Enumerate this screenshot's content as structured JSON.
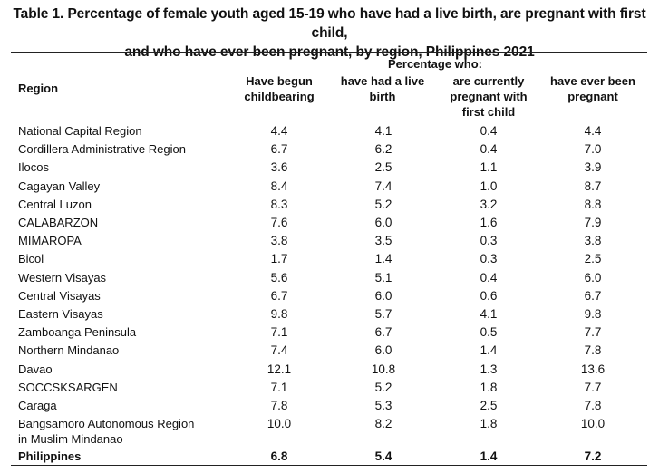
{
  "title": {
    "line1": "Table 1. Percentage of female youth aged 15-19 who have had a live birth, are pregnant with first child,",
    "line2": "and who have ever been pregnant, by region, Philippines 2021"
  },
  "header": {
    "region": "Region",
    "group": "Percentage who:",
    "col1": [
      "Have begun",
      "childbearing"
    ],
    "col2": [
      "have had a live",
      "birth"
    ],
    "col3": [
      "are currently",
      "pregnant with",
      "first child"
    ],
    "col4": [
      "have ever been",
      "pregnant"
    ]
  },
  "rows": [
    {
      "region": [
        "National Capital Region"
      ],
      "v": [
        "4.4",
        "4.1",
        "0.4",
        "4.4"
      ]
    },
    {
      "region": [
        "Cordillera Administrative Region"
      ],
      "v": [
        "6.7",
        "6.2",
        "0.4",
        "7.0"
      ]
    },
    {
      "region": [
        "Ilocos"
      ],
      "v": [
        "3.6",
        "2.5",
        "1.1",
        "3.9"
      ]
    },
    {
      "region": [
        "Cagayan Valley"
      ],
      "v": [
        "8.4",
        "7.4",
        "1.0",
        "8.7"
      ]
    },
    {
      "region": [
        "Central Luzon"
      ],
      "v": [
        "8.3",
        "5.2",
        "3.2",
        "8.8"
      ]
    },
    {
      "region": [
        "CALABARZON"
      ],
      "v": [
        "7.6",
        "6.0",
        "1.6",
        "7.9"
      ]
    },
    {
      "region": [
        "MIMAROPA"
      ],
      "v": [
        "3.8",
        "3.5",
        "0.3",
        "3.8"
      ]
    },
    {
      "region": [
        "Bicol"
      ],
      "v": [
        "1.7",
        "1.4",
        "0.3",
        "2.5"
      ]
    },
    {
      "region": [
        "Western Visayas"
      ],
      "v": [
        "5.6",
        "5.1",
        "0.4",
        "6.0"
      ]
    },
    {
      "region": [
        "Central Visayas"
      ],
      "v": [
        "6.7",
        "6.0",
        "0.6",
        "6.7"
      ]
    },
    {
      "region": [
        "Eastern Visayas"
      ],
      "v": [
        "9.8",
        "5.7",
        "4.1",
        "9.8"
      ]
    },
    {
      "region": [
        "Zamboanga Peninsula"
      ],
      "v": [
        "7.1",
        "6.7",
        "0.5",
        "7.7"
      ]
    },
    {
      "region": [
        "Northern Mindanao"
      ],
      "v": [
        "7.4",
        "6.0",
        "1.4",
        "7.8"
      ]
    },
    {
      "region": [
        "Davao"
      ],
      "v": [
        "12.1",
        "10.8",
        "1.3",
        "13.6"
      ]
    },
    {
      "region": [
        "SOCCSKSARGEN"
      ],
      "v": [
        "7.1",
        "5.2",
        "1.8",
        "7.7"
      ]
    },
    {
      "region": [
        "Caraga"
      ],
      "v": [
        "7.8",
        "5.3",
        "2.5",
        "7.8"
      ]
    },
    {
      "region": [
        "Bangsamoro Autonomous Region",
        "in Muslim Mindanao"
      ],
      "v": [
        "10.0",
        "8.2",
        "1.8",
        "10.0"
      ]
    }
  ],
  "total": {
    "region": "Philippines",
    "v": [
      "6.8",
      "5.4",
      "1.4",
      "7.2"
    ]
  }
}
